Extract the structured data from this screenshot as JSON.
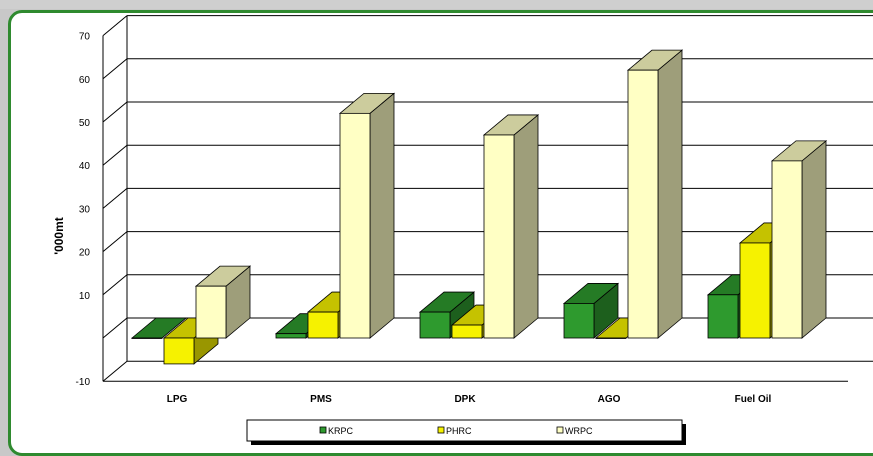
{
  "chart_data": {
    "type": "bar",
    "title": "",
    "xlabel": "",
    "ylabel": "'000mt",
    "ylim": [
      -10,
      70
    ],
    "yticks": [
      -10,
      10,
      20,
      30,
      40,
      50,
      60,
      70
    ],
    "grid": true,
    "legend_position": "bottom",
    "categories": [
      "LPG",
      "PMS",
      "DPK",
      "AGO",
      "Fuel Oil"
    ],
    "series": [
      {
        "name": "KRPC",
        "color": "#2e9a2e",
        "values": [
          0,
          1,
          6,
          8,
          10
        ]
      },
      {
        "name": "PHRC",
        "color": "#f6f200",
        "values": [
          -6,
          6,
          3,
          0,
          22
        ]
      },
      {
        "name": "WRPC",
        "color": "#ffffc4",
        "values": [
          12,
          52,
          47,
          62,
          41
        ]
      }
    ]
  }
}
